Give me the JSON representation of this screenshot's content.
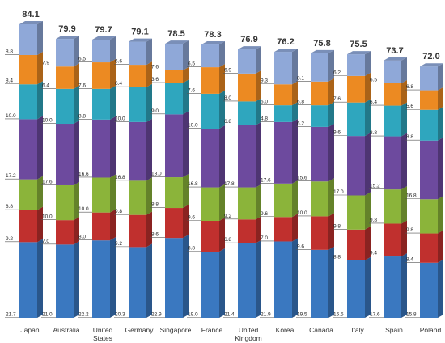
{
  "chart_data": {
    "type": "bar",
    "stacked": true,
    "categories": [
      "Japan",
      "Australia",
      "United States",
      "Germany",
      "Singapore",
      "France",
      "United Kingdom",
      "Korea",
      "Canada",
      "Italy",
      "Spain",
      "Poland"
    ],
    "category_lines": [
      [
        "Japan"
      ],
      [
        "Australia"
      ],
      [
        "United",
        "States"
      ],
      [
        "Germany"
      ],
      [
        "Singapore"
      ],
      [
        "France"
      ],
      [
        "United",
        "Kingdom"
      ],
      [
        "Korea"
      ],
      [
        "Canada"
      ],
      [
        "Italy"
      ],
      [
        "Spain"
      ],
      [
        "Poland"
      ]
    ],
    "totals": [
      84.1,
      79.9,
      79.7,
      79.1,
      78.5,
      78.3,
      76.9,
      76.2,
      75.8,
      75.5,
      73.7,
      72.0
    ],
    "series": [
      {
        "color": "#3a78c0",
        "values": [
          21.7,
          21.0,
          22.2,
          20.3,
          22.9,
          19.0,
          21.4,
          21.9,
          19.5,
          16.5,
          17.6,
          15.8
        ]
      },
      {
        "color": "#c0302e",
        "values": [
          9.2,
          7.0,
          8.0,
          9.2,
          8.6,
          8.8,
          6.8,
          7.0,
          9.6,
          8.8,
          9.4,
          8.4
        ]
      },
      {
        "color": "#8bb43a",
        "values": [
          8.8,
          10.0,
          10.0,
          9.8,
          8.8,
          9.6,
          9.2,
          9.6,
          10.0,
          9.8,
          9.8,
          9.8
        ]
      },
      {
        "color": "#6d4a9e",
        "values": [
          17.2,
          17.6,
          16.6,
          16.8,
          18.0,
          16.8,
          17.8,
          17.6,
          15.6,
          17.0,
          15.2,
          16.8
        ]
      },
      {
        "color": "#2fa6be",
        "values": [
          10.0,
          10.0,
          8.8,
          10.0,
          9.0,
          10.0,
          6.8,
          4.8,
          6.2,
          9.6,
          8.8,
          8.8
        ]
      },
      {
        "color": "#ec8a22",
        "values": [
          8.4,
          6.4,
          7.6,
          6.4,
          3.6,
          7.6,
          8.0,
          6.0,
          6.8,
          7.6,
          6.4,
          5.6
        ]
      },
      {
        "color": "#8fa8d8",
        "values": [
          8.8,
          7.9,
          6.5,
          6.6,
          7.6,
          6.5,
          6.9,
          9.3,
          8.1,
          6.2,
          6.5,
          6.8
        ]
      }
    ],
    "ylim": [
      0,
      84.1
    ]
  }
}
